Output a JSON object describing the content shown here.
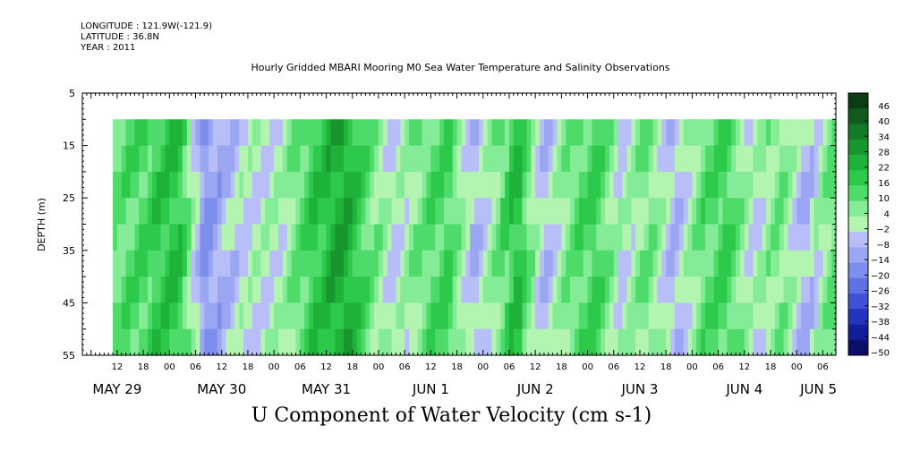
{
  "header": {
    "longitude": "LONGITUDE : 121.9W(-121.9)",
    "latitude": "LATITUDE : 36.8N",
    "year": "YEAR : 2011"
  },
  "chart_data": {
    "type": "heatmap",
    "title": "Hourly Gridded MBARI Mooring M0 Sea Water Temperature and Salinity Observations",
    "subtitle": "U Component of Water Velocity (cm s-1)",
    "ylabel": "DEPTH (m)",
    "ylim": [
      5,
      55
    ],
    "y_inverted": true,
    "y_ticks": [
      5,
      15,
      25,
      35,
      45,
      55
    ],
    "x_hour_ticks": [
      {
        "h": 12,
        "label": "12"
      },
      {
        "h": 18,
        "label": "18"
      },
      {
        "h": 24,
        "label": "00"
      },
      {
        "h": 30,
        "label": "06"
      },
      {
        "h": 36,
        "label": "12"
      },
      {
        "h": 42,
        "label": "18"
      },
      {
        "h": 48,
        "label": "00"
      },
      {
        "h": 54,
        "label": "06"
      },
      {
        "h": 60,
        "label": "12"
      },
      {
        "h": 66,
        "label": "18"
      },
      {
        "h": 72,
        "label": "00"
      },
      {
        "h": 78,
        "label": "06"
      },
      {
        "h": 84,
        "label": "12"
      },
      {
        "h": 90,
        "label": "18"
      },
      {
        "h": 96,
        "label": "00"
      },
      {
        "h": 102,
        "label": "06"
      },
      {
        "h": 108,
        "label": "12"
      },
      {
        "h": 114,
        "label": "18"
      },
      {
        "h": 120,
        "label": "00"
      },
      {
        "h": 126,
        "label": "06"
      },
      {
        "h": 132,
        "label": "12"
      },
      {
        "h": 138,
        "label": "18"
      },
      {
        "h": 144,
        "label": "00"
      },
      {
        "h": 150,
        "label": "06"
      },
      {
        "h": 156,
        "label": "12"
      },
      {
        "h": 162,
        "label": "18"
      },
      {
        "h": 168,
        "label": "00"
      },
      {
        "h": 174,
        "label": "06"
      }
    ],
    "x_day_labels": [
      {
        "h": 12,
        "label": "MAY 29"
      },
      {
        "h": 36,
        "label": "MAY 30"
      },
      {
        "h": 60,
        "label": "MAY 31"
      },
      {
        "h": 84,
        "label": "JUN  1"
      },
      {
        "h": 108,
        "label": "JUN  2"
      },
      {
        "h": 132,
        "label": "JUN  3"
      },
      {
        "h": 156,
        "label": "JUN  4"
      },
      {
        "h": 173,
        "label": "JUN  5"
      }
    ],
    "xlim_hours": [
      4,
      177
    ],
    "data_start_hour": 11,
    "data_end_hour": 177,
    "data_top_depth": 10,
    "data_bottom_depth": 55,
    "colorbar": {
      "labels": [
        46,
        40,
        34,
        28,
        22,
        16,
        10,
        4,
        -2,
        -8,
        -14,
        -20,
        -26,
        -32,
        -38,
        -44,
        -50
      ],
      "colors": [
        "#0a3d14",
        "#0f5a1c",
        "#137a25",
        "#18962e",
        "#1fb23a",
        "#2cc94b",
        "#4fdb6a",
        "#84ec96",
        "#b3f4b0",
        "#b8bef8",
        "#9aa6f2",
        "#7e8eec",
        "#5f72e4",
        "#3f52d6",
        "#2434bd",
        "#121e9a",
        "#0a0f6a"
      ]
    },
    "u_velocity_profile": [
      {
        "h": 12,
        "v": 4
      },
      {
        "h": 20,
        "v": 10
      },
      {
        "h": 26,
        "v": 16
      },
      {
        "h": 32,
        "v": -20
      },
      {
        "h": 40,
        "v": -8
      },
      {
        "h": 50,
        "v": -4
      },
      {
        "h": 56,
        "v": 10
      },
      {
        "h": 64,
        "v": 22
      },
      {
        "h": 70,
        "v": 4
      },
      {
        "h": 76,
        "v": -8
      },
      {
        "h": 82,
        "v": 4
      },
      {
        "h": 88,
        "v": 10
      },
      {
        "h": 94,
        "v": -14
      },
      {
        "h": 100,
        "v": 4
      },
      {
        "h": 104,
        "v": 16
      },
      {
        "h": 110,
        "v": -14
      },
      {
        "h": 116,
        "v": 4
      },
      {
        "h": 122,
        "v": 10
      },
      {
        "h": 128,
        "v": -8
      },
      {
        "h": 134,
        "v": 4
      },
      {
        "h": 140,
        "v": -14
      },
      {
        "h": 146,
        "v": 4
      },
      {
        "h": 152,
        "v": 10
      },
      {
        "h": 158,
        "v": -8
      },
      {
        "h": 164,
        "v": 4
      },
      {
        "h": 170,
        "v": -14
      },
      {
        "h": 176,
        "v": 4
      }
    ]
  }
}
